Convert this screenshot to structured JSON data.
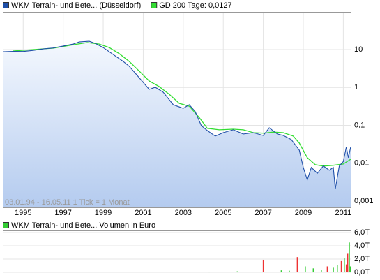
{
  "chart_data": [
    {
      "type": "line",
      "series": [
        {
          "name": "WKM Terrain- und Bete... (Düsseldorf)",
          "color": "#1f4fa8",
          "x": [
            1994.0,
            1994.5,
            1995.0,
            1995.5,
            1996.0,
            1996.5,
            1997.0,
            1997.5,
            1997.8,
            1998.3,
            1998.6,
            1999.0,
            1999.5,
            2000.0,
            2000.3,
            2000.6,
            2001.0,
            2001.3,
            2001.6,
            2002.0,
            2002.5,
            2003.0,
            2003.3,
            2003.6,
            2003.9,
            2004.2,
            2004.6,
            2005.0,
            2005.5,
            2006.0,
            2006.5,
            2007.0,
            2007.3,
            2007.7,
            2008.0,
            2008.4,
            2008.8,
            2009.0,
            2009.2,
            2009.4,
            2009.7,
            2010.0,
            2010.3,
            2010.5,
            2010.6,
            2010.8,
            2011.0,
            2011.15,
            2011.25,
            2011.37
          ],
          "values": [
            8.8,
            9.0,
            8.9,
            9.5,
            10.4,
            11.0,
            12.4,
            14.0,
            15.9,
            16.6,
            14.6,
            11.3,
            7.4,
            4.86,
            3.61,
            2.38,
            1.36,
            0.89,
            1.01,
            0.75,
            0.35,
            0.28,
            0.35,
            0.23,
            0.098,
            0.073,
            0.052,
            0.064,
            0.076,
            0.059,
            0.064,
            0.054,
            0.086,
            0.059,
            0.054,
            0.042,
            0.022,
            0.0077,
            0.0036,
            0.0077,
            0.0054,
            0.0084,
            0.0065,
            0.0077,
            0.0021,
            0.0084,
            0.011,
            0.027,
            0.014,
            0.027
          ]
        },
        {
          "name": "GD 200 Tage: 0,0127",
          "color": "#33dd33",
          "x": [
            1994.5,
            1995.5,
            1996.5,
            1997.5,
            1998.2,
            1998.8,
            1999.3,
            1999.8,
            2000.3,
            2000.8,
            2001.3,
            2001.8,
            2002.3,
            2002.8,
            2003.3,
            2003.8,
            2004.2,
            2004.8,
            2005.5,
            2006.0,
            2006.5,
            2007.0,
            2007.5,
            2008.0,
            2008.5,
            2008.8,
            2009.2,
            2009.6,
            2010.0,
            2010.5,
            2011.0,
            2011.37
          ],
          "values": [
            9.2,
            10,
            10.9,
            13.4,
            15.3,
            14.0,
            11.3,
            7.8,
            4.86,
            2.7,
            1.48,
            1.05,
            0.66,
            0.38,
            0.32,
            0.16,
            0.083,
            0.076,
            0.079,
            0.076,
            0.064,
            0.062,
            0.066,
            0.064,
            0.052,
            0.034,
            0.014,
            0.0091,
            0.0084,
            0.0088,
            0.0095,
            0.0127
          ]
        }
      ],
      "xlim": [
        1993.98,
        2011.37
      ],
      "xticks": [
        1995,
        1997,
        1999,
        2001,
        2003,
        2005,
        2007,
        2009,
        2011
      ],
      "ylim": [
        0.00068,
        99
      ],
      "yscale": "log",
      "yticks": [
        10,
        1,
        {
          "value": 0.1,
          "label": "0,1"
        },
        {
          "value": 0.01,
          "label": "0,01"
        },
        {
          "value": 0.001,
          "label": "0,001"
        }
      ],
      "grid": true,
      "note": "03.01.94 - 16.05.11   1 Tick = 1 Monat"
    },
    {
      "type": "bar",
      "series": [
        {
          "name": "WKM Terrain- und Bete... Volumen in Euro",
          "color": "#33cc33",
          "x": [
            2004.3,
            2005.7,
            2007.0,
            2007.9,
            2008.3,
            2008.7,
            2009.1,
            2009.5,
            2009.9,
            2010.2,
            2010.5,
            2010.7,
            2010.9,
            2011.05,
            2011.15,
            2011.22,
            2011.3,
            2011.35
          ],
          "values": [
            100,
            150,
            1900,
            300,
            250,
            2300,
            900,
            600,
            400,
            900,
            700,
            1100,
            1700,
            2100,
            1200,
            2800,
            4500,
            900
          ],
          "colors": [
            "#33cc33",
            "#33cc33",
            "#ee3333",
            "#33cc33",
            "#33cc33",
            "#ee3333",
            "#33cc33",
            "#33cc33",
            "#33cc33",
            "#ee3333",
            "#33cc33",
            "#33cc33",
            "#ee3333",
            "#33cc33",
            "#ee3333",
            "#ee3333",
            "#33cc33",
            "#33cc33"
          ]
        }
      ],
      "xlim": [
        1993.98,
        2011.37
      ],
      "ylim": [
        -630,
        6320
      ],
      "yticks": [
        {
          "value": 6000,
          "label": "6,0T"
        },
        {
          "value": 4000,
          "label": "4,0T"
        },
        {
          "value": 2000,
          "label": "2,0T"
        },
        {
          "value": 0,
          "label": "0,0T"
        }
      ],
      "grid": true
    }
  ]
}
